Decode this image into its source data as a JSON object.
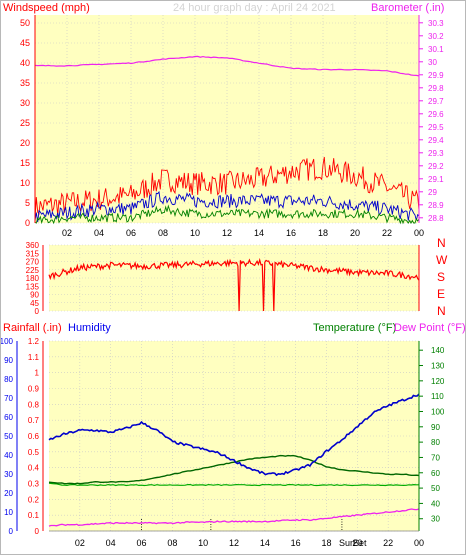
{
  "header": {
    "wind_label": "Windspeed (mph)",
    "title": "24 hour graph day : April 24 2021",
    "baro_label": "Barometer (.in)"
  },
  "compass_labels": [
    "N",
    "W",
    "S",
    "E",
    "N"
  ],
  "bottom_labels": {
    "rain": "Rainfall (.in)",
    "humidity": "Humidity",
    "temperature": "Temperature (°F)",
    "dewpoint": "Dew Point (°F)"
  },
  "sun_markers": {
    "sunrise": "Sun",
    "sunset": "Set"
  },
  "colors": {
    "plot_bg": "#ffffc0",
    "grid": "#c8c8c8",
    "wind_gust": "#ff0000",
    "wind_avg": "#0000cc",
    "wind_low": "#008000",
    "barometer": "#ee22ee",
    "direction": "#ff0000",
    "humidity": "#0000cc",
    "temperature": "#006600",
    "dewpoint": "#00aa00",
    "rainfall": "#ee22ee",
    "left_axis": "#ff0000",
    "right_axis": "#ee22ee",
    "humidity_axis": "#0000ee",
    "temp_axis": "#008000",
    "title_text": "#d4d4d4"
  },
  "chart_data": [
    {
      "type": "line",
      "title": "24 hour graph day : April 24 2021",
      "xlabel": "",
      "x_ticks": [
        "02",
        "04",
        "06",
        "08",
        "10",
        "12",
        "14",
        "16",
        "18",
        "20",
        "22",
        "00"
      ],
      "y_left": {
        "label": "Windspeed (mph)",
        "ticks": [
          "0",
          "5",
          "10",
          "15",
          "20",
          "25",
          "30",
          "35",
          "40",
          "45",
          "50"
        ],
        "range": [
          0,
          52
        ]
      },
      "y_right": {
        "label": "Barometer (.in)",
        "ticks": [
          "28.8",
          "28.9",
          "29",
          "29.1",
          "29.2",
          "29.3",
          "29.4",
          "29.5",
          "29.6",
          "29.7",
          "29.8",
          "29.9",
          "30",
          "30.1",
          "30.2",
          "30.3"
        ],
        "range": [
          28.76,
          30.36
        ]
      },
      "hours": [
        0,
        2,
        4,
        6,
        8,
        10,
        12,
        14,
        16,
        18,
        20,
        22,
        24
      ],
      "series": [
        {
          "name": "Windspeed (mph)",
          "role": "gust",
          "values": [
            3,
            4,
            5,
            6,
            10,
            9,
            9,
            10,
            12,
            13,
            11,
            8,
            4
          ]
        },
        {
          "name": "Windspeed (mph)",
          "role": "average",
          "values": [
            1,
            2,
            3,
            3,
            6,
            5,
            5,
            5,
            5,
            5,
            4,
            3,
            1
          ]
        },
        {
          "name": "Windspeed (mph)",
          "role": "lull",
          "values": [
            0,
            1,
            1,
            1,
            3,
            2,
            2,
            2,
            2,
            2,
            2,
            1,
            0
          ]
        },
        {
          "name": "Barometer (.in)",
          "values": [
            29.97,
            29.97,
            29.98,
            29.99,
            30.02,
            30.04,
            30.03,
            29.99,
            29.95,
            29.94,
            29.94,
            29.93,
            29.89
          ]
        }
      ]
    },
    {
      "type": "line",
      "x_ticks": [],
      "y_left": {
        "ticks": [
          "360",
          "315",
          "270",
          "225",
          "180",
          "135",
          "90",
          "45",
          "0"
        ],
        "range": [
          0,
          360
        ]
      },
      "y_right": {
        "ticks": [
          "N",
          "W",
          "S",
          "E",
          "N"
        ]
      },
      "hours": [
        0,
        2,
        4,
        6,
        8,
        10,
        12,
        14,
        16,
        18,
        20,
        22,
        24
      ],
      "series": [
        {
          "values": [
            190,
            235,
            250,
            245,
            250,
            258,
            262,
            262,
            245,
            225,
            210,
            205,
            185
          ]
        }
      ],
      "drops_to_zero_at_hours": [
        12.3,
        13.9,
        14.6
      ]
    },
    {
      "type": "line",
      "x_ticks": [
        "02",
        "04",
        "06",
        "08",
        "10",
        "12",
        "14",
        "16",
        "18",
        "20",
        "22",
        "00"
      ],
      "y_left_rain": {
        "label": "Rainfall (.in)",
        "ticks": [
          "0",
          "0.1",
          "0.2",
          "0.3",
          "0.4",
          "0.5",
          "0.6",
          "0.7",
          "0.8",
          "0.9",
          "1",
          "1.1",
          "1.2"
        ],
        "range": [
          0,
          1.2
        ]
      },
      "y_left_humidity": {
        "label": "Humidity",
        "ticks": [
          "0",
          "10",
          "20",
          "30",
          "40",
          "50",
          "60",
          "70",
          "80",
          "90",
          "100"
        ],
        "range": [
          0,
          100
        ]
      },
      "y_right": {
        "label": "Temperature (°F) Dew Point (°F)",
        "ticks": [
          "30",
          "40",
          "50",
          "60",
          "70",
          "80",
          "90",
          "100",
          "110",
          "120",
          "130",
          "140"
        ],
        "range": [
          22,
          146
        ]
      },
      "hours": [
        0,
        1,
        2,
        3,
        4,
        5,
        6,
        7,
        8,
        9,
        10,
        11,
        12,
        13,
        14,
        15,
        16,
        17,
        18,
        19,
        20,
        21,
        22,
        23,
        24
      ],
      "series": [
        {
          "name": "Humidity",
          "values": [
            48,
            51,
            53,
            53,
            52,
            54,
            57,
            53,
            47,
            45,
            43,
            41,
            37,
            33,
            30,
            30,
            32,
            35,
            42,
            48,
            55,
            62,
            66,
            69,
            72
          ]
        },
        {
          "name": "Temperature (°F)",
          "values": [
            54,
            53,
            53,
            54,
            54,
            54,
            55,
            57,
            59,
            61,
            63,
            65,
            67,
            69,
            70,
            71,
            71,
            68,
            64,
            62,
            61,
            60,
            59,
            59,
            58
          ]
        },
        {
          "name": "Dew Point (°F)",
          "values": [
            53,
            52,
            52,
            52,
            52,
            52,
            52,
            52,
            52,
            52,
            52,
            52,
            52,
            52,
            52,
            52,
            52,
            52,
            52,
            52,
            52,
            52,
            52,
            52,
            52
          ]
        },
        {
          "name": "Rainfall (.in)",
          "values": [
            0.03,
            0.04,
            0.04,
            0.045,
            0.05,
            0.05,
            0.05,
            0.05,
            0.05,
            0.055,
            0.055,
            0.06,
            0.06,
            0.06,
            0.06,
            0.065,
            0.07,
            0.07,
            0.08,
            0.09,
            0.1,
            0.11,
            0.12,
            0.13,
            0.14
          ]
        }
      ]
    }
  ]
}
